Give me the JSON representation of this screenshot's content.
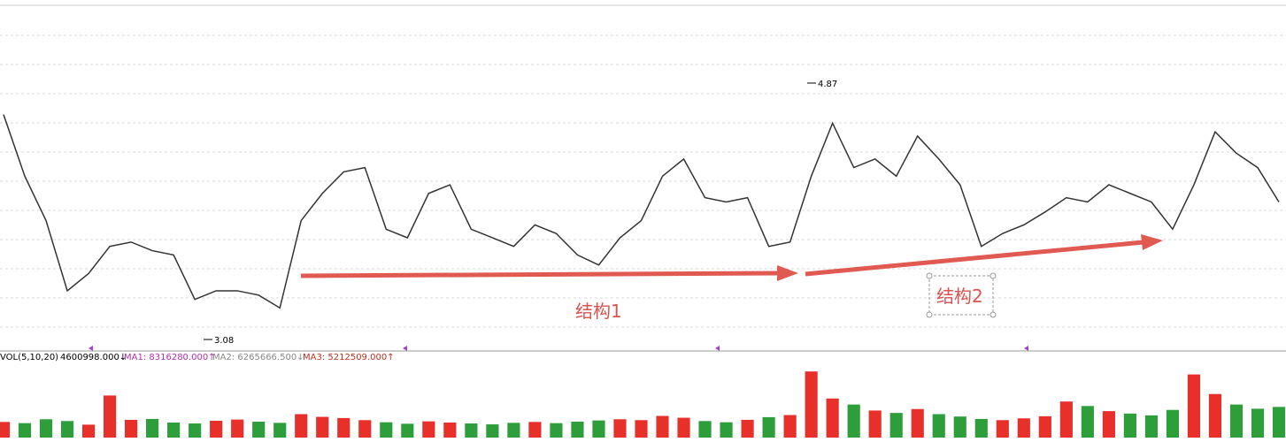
{
  "chart_data": [
    {
      "type": "line",
      "color": "#333333",
      "ylim": [
        3.0,
        5.45
      ],
      "values": [
        4.65,
        4.22,
        3.91,
        3.42,
        3.54,
        3.73,
        3.76,
        3.7,
        3.67,
        3.36,
        3.42,
        3.42,
        3.39,
        3.3,
        3.91,
        4.1,
        4.25,
        4.28,
        3.85,
        3.79,
        4.1,
        4.16,
        3.85,
        3.79,
        3.73,
        3.88,
        3.82,
        3.67,
        3.6,
        3.79,
        3.91,
        4.22,
        4.34,
        4.07,
        4.04,
        4.07,
        3.73,
        3.76,
        4.22,
        4.59,
        4.28,
        4.34,
        4.22,
        4.5,
        4.34,
        4.16,
        3.73,
        3.82,
        3.88,
        3.97,
        4.07,
        4.04,
        4.16,
        4.1,
        4.04,
        3.85,
        4.16,
        4.53,
        4.38,
        4.28,
        4.04
      ],
      "high_label": 4.87,
      "low_label": 3.08,
      "annotations": [
        "结构1",
        "结构2"
      ]
    },
    {
      "type": "bar",
      "title": "VOL(5,10,20)",
      "ylim": [
        0,
        25000000
      ],
      "up_color": "#e8302a",
      "down_color": "#2e9e3a",
      "legend": [
        "4600998.000↓",
        "MA1: 8316280.000↑",
        "MA2: 6265666.500↓",
        "MA3: 5212509.000↑"
      ],
      "values": [
        5200000,
        4800000,
        6100000,
        5500000,
        4300000,
        14000000,
        5900000,
        6200000,
        5000000,
        4700000,
        5600000,
        6000000,
        5300000,
        4900000,
        7800000,
        6900000,
        6500000,
        5800000,
        5100000,
        4600000,
        5400000,
        5000000,
        4700000,
        4400000,
        4900000,
        5200000,
        4800000,
        5300000,
        5700000,
        6100000,
        5800000,
        7200000,
        6600000,
        5500000,
        5100000,
        5900000,
        6800000,
        7500000,
        22000000,
        13000000,
        11000000,
        9000000,
        8200000,
        9500000,
        7800000,
        7000000,
        6200000,
        5800000,
        6400000,
        7100000,
        12000000,
        10500000,
        8800000,
        8000000,
        7400000,
        9200000,
        21000000,
        14500000,
        11000000,
        9600000,
        10200000
      ]
    }
  ]
}
